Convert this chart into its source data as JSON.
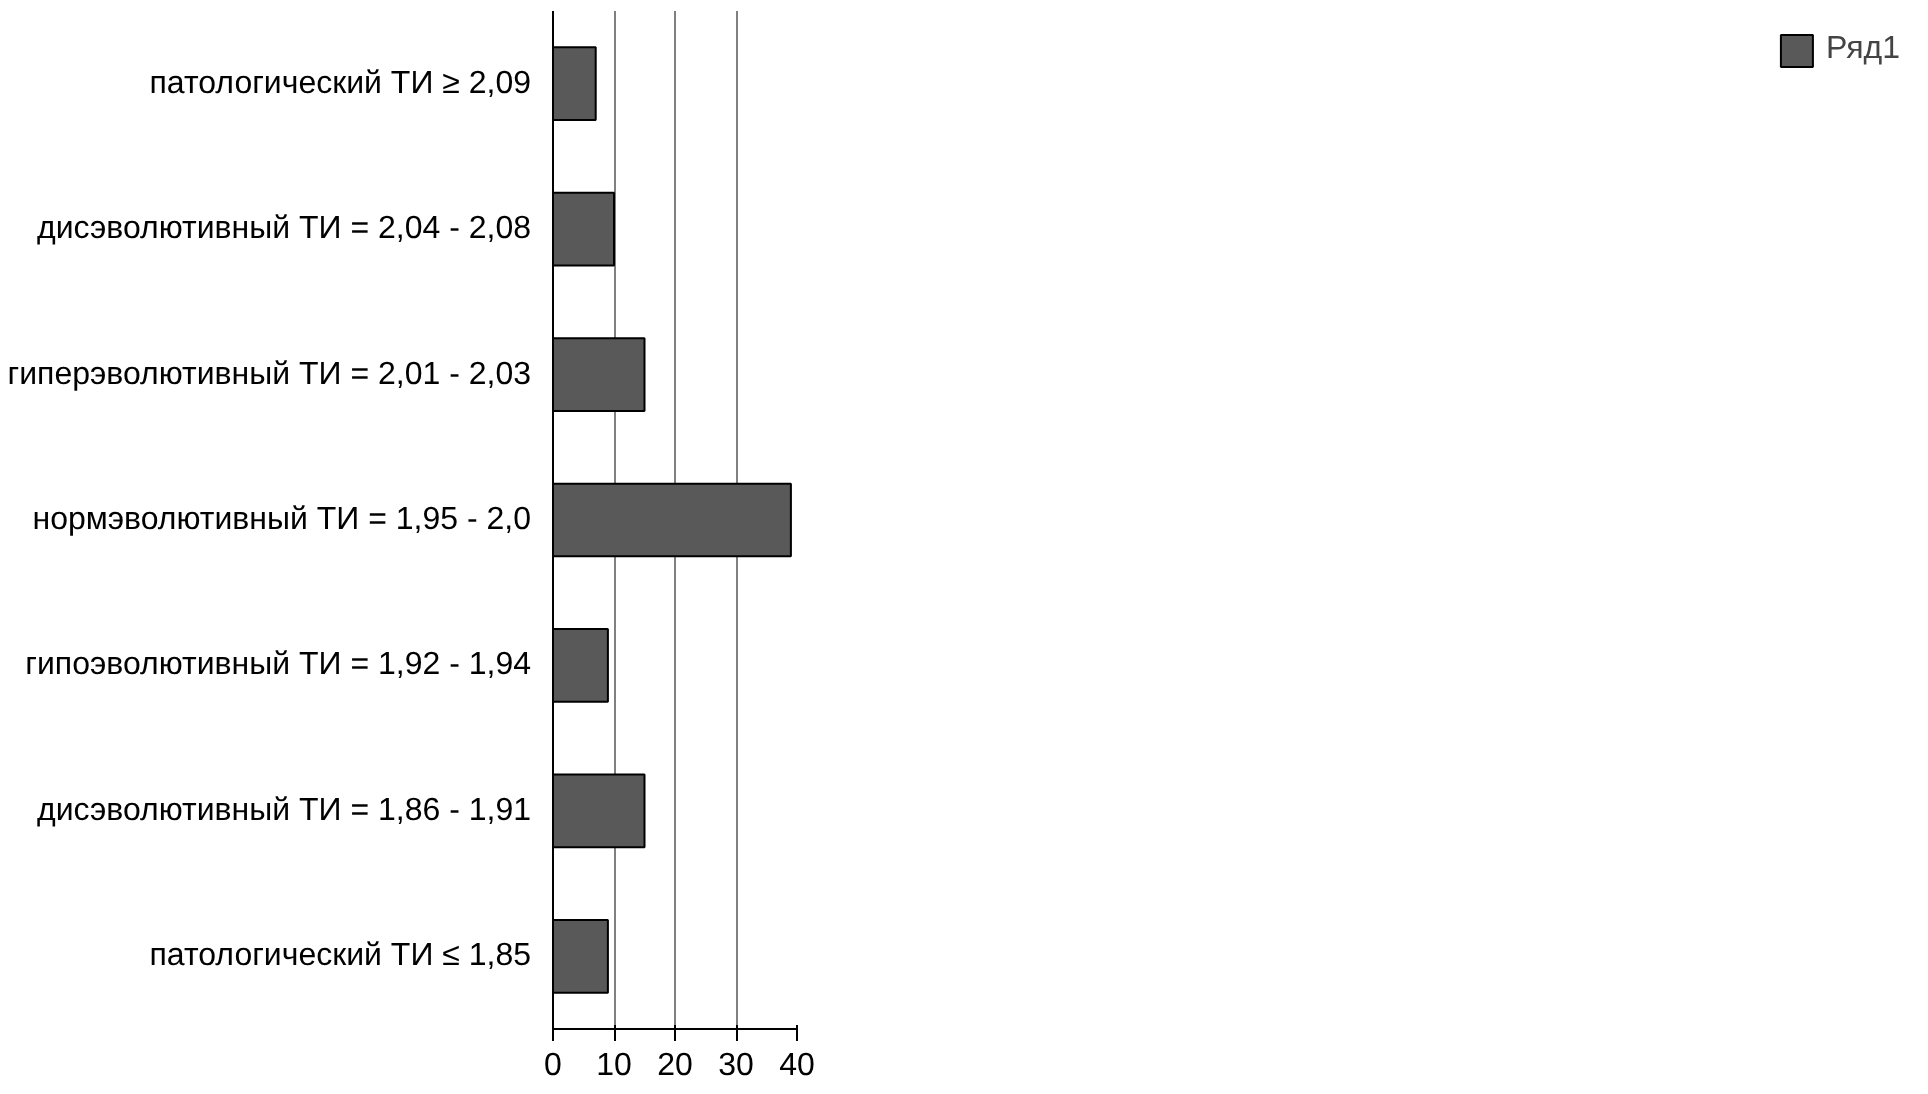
{
  "chart_data": {
    "type": "bar",
    "orientation": "horizontal",
    "categories": [
      "патологический ТИ ≥ 2,09",
      "дисэволютивный ТИ = 2,04 - 2,08",
      "гиперэволютивный ТИ = 2,01 - 2,03",
      "нормэволютивный ТИ = 1,95 - 2,0",
      "гипоэволютивный ТИ = 1,92 - 1,94",
      "дисэволютивный ТИ = 1,86 - 1,91",
      "патологический ТИ ≤ 1,85"
    ],
    "series": [
      {
        "name": "Ряд1",
        "color": "#595959",
        "values": [
          7,
          10,
          15,
          39,
          9,
          15,
          9
        ]
      }
    ],
    "xlim": [
      0,
      40
    ],
    "xticks": [
      0,
      10,
      20,
      30,
      40
    ],
    "grid": "x",
    "legend": "right"
  }
}
